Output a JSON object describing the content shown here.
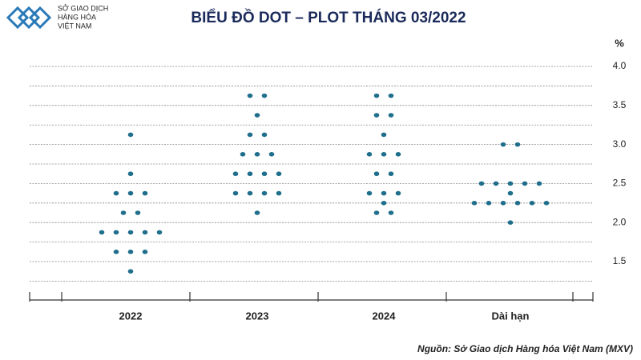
{
  "header": {
    "logo_lines": [
      "SỞ GIAO DỊCH",
      "HÀNG HÓA",
      "VIỆT NAM"
    ]
  },
  "chart_data": {
    "type": "dot",
    "title": "BIỂU ĐỒ DOT – PLOT THÁNG 03/2022",
    "y_label": "%",
    "source": "Nguồn: Sở Giao dịch Hàng hóa Việt Nam (MXV)",
    "categories": [
      "2022",
      "2023",
      "2024",
      "Dài hạn"
    ],
    "dots": [
      [
        3.125,
        2.625,
        2.375,
        2.375,
        2.375,
        2.125,
        2.125,
        1.875,
        1.875,
        1.875,
        1.875,
        1.875,
        1.625,
        1.625,
        1.625,
        1.375
      ],
      [
        3.625,
        3.625,
        3.375,
        3.125,
        3.125,
        2.875,
        2.875,
        2.875,
        2.625,
        2.625,
        2.625,
        2.625,
        2.375,
        2.375,
        2.375,
        2.375,
        2.125
      ],
      [
        3.625,
        3.625,
        3.375,
        3.375,
        3.125,
        2.875,
        2.875,
        2.875,
        2.625,
        2.625,
        2.375,
        2.375,
        2.375,
        2.25,
        2.125,
        2.125
      ],
      [
        3,
        3,
        2.5,
        2.5,
        2.5,
        2.5,
        2.5,
        2.375,
        2.25,
        2.25,
        2.25,
        2.25,
        2.25,
        2.25,
        2
      ]
    ],
    "color": "#1f6e8c",
    "ylim": [
      1.0,
      4.2
    ],
    "yticks": [
      {
        "value": 1.5,
        "label": "1.5"
      },
      {
        "value": 2,
        "label": "2.0"
      },
      {
        "value": 2.5,
        "label": "2.5"
      },
      {
        "value": 3,
        "label": "3.0"
      },
      {
        "value": 3.5,
        "label": "3.5"
      },
      {
        "value": 4,
        "label": "4.0"
      }
    ],
    "minor_yticks": [
      1.25,
      1.75,
      2.25,
      2.75,
      3.25,
      3.75
    ],
    "grid": true
  }
}
